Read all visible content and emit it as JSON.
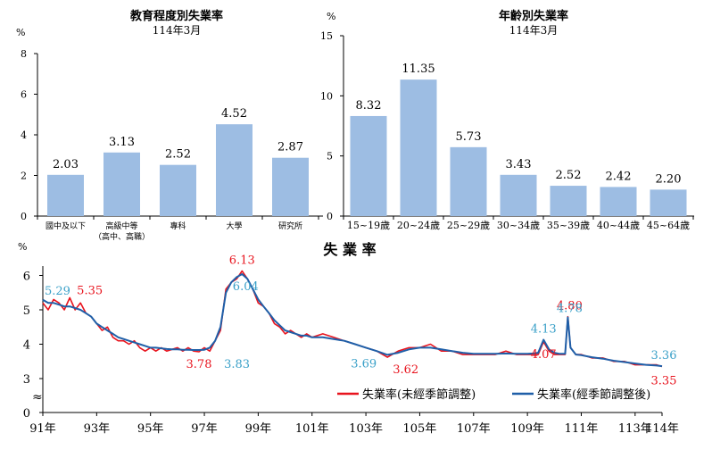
{
  "chart_data": [
    {
      "type": "bar",
      "title": "教育程度別失業率",
      "subtitle": "114年3月",
      "ylabel": "%",
      "ylim": [
        0,
        8
      ],
      "yticks": [
        0,
        2,
        4,
        6,
        8
      ],
      "categories": [
        [
          "國中及以下"
        ],
        [
          "高級中等",
          "（高中、高職）"
        ],
        [
          "專科"
        ],
        [
          "大學"
        ],
        [
          "研究所"
        ]
      ],
      "values": [
        2.03,
        3.13,
        2.52,
        4.52,
        2.87
      ],
      "value_labels": [
        "2.03",
        "3.13",
        "2.52",
        "4.52",
        "2.87"
      ],
      "color": "#9dbde3"
    },
    {
      "type": "bar",
      "title": "年齡別失業率",
      "subtitle": "114年3月",
      "ylabel": "%",
      "ylim": [
        0,
        15
      ],
      "yticks": [
        0,
        5,
        10,
        15
      ],
      "categories": [
        "15~19歲",
        "20~24歲",
        "25~29歲",
        "30~34歲",
        "35~39歲",
        "40~44歲",
        "45~64歲"
      ],
      "values": [
        8.32,
        11.35,
        5.73,
        3.43,
        2.52,
        2.42,
        2.2
      ],
      "value_labels": [
        "8.32",
        "11.35",
        "5.73",
        "3.43",
        "2.52",
        "2.42",
        "2.20"
      ],
      "color": "#9dbde3"
    },
    {
      "type": "line",
      "title": "失 業 率",
      "ylabel": "%",
      "ylim": [
        0,
        6.5
      ],
      "yticks": [
        0,
        3,
        4,
        5,
        6
      ],
      "axis_break": "≈",
      "xlim": [
        91,
        114
      ],
      "xticks": [
        "91年",
        "93年",
        "95年",
        "97年",
        "99年",
        "101年",
        "103年",
        "105年",
        "107年",
        "109年",
        "111年",
        "113年",
        "114年"
      ],
      "xtick_values": [
        91,
        93,
        95,
        97,
        99,
        101,
        103,
        105,
        107,
        109,
        111,
        113,
        114
      ],
      "series": [
        {
          "name": "失業率(未經季節調整)",
          "color": "#e8141e",
          "x": [
            91,
            91.2,
            91.4,
            91.6,
            91.8,
            92,
            92.2,
            92.4,
            92.6,
            92.8,
            93,
            93.2,
            93.4,
            93.6,
            93.8,
            94,
            94.2,
            94.4,
            94.6,
            94.8,
            95,
            95.2,
            95.4,
            95.6,
            95.8,
            96,
            96.2,
            96.4,
            96.6,
            96.8,
            97,
            97.2,
            97.4,
            97.6,
            97.8,
            98,
            98.2,
            98.4,
            98.6,
            98.8,
            99,
            99.2,
            99.4,
            99.6,
            99.8,
            100,
            100.2,
            100.4,
            100.6,
            100.8,
            101,
            101.4,
            101.8,
            102.2,
            102.6,
            103,
            103.4,
            103.8,
            104.2,
            104.6,
            105,
            105.4,
            105.8,
            106.2,
            106.6,
            107,
            107.4,
            107.8,
            108.2,
            108.6,
            109,
            109.2,
            109.4,
            109.6,
            109.8,
            110,
            110.2,
            110.4,
            110.5,
            110.6,
            110.8,
            111,
            111.4,
            111.8,
            112.2,
            112.6,
            113,
            113.4,
            113.8,
            114
          ],
          "values": [
            5.2,
            5.0,
            5.3,
            5.2,
            5.0,
            5.35,
            5.0,
            5.2,
            4.9,
            4.8,
            4.6,
            4.4,
            4.5,
            4.2,
            4.1,
            4.1,
            4.0,
            4.1,
            3.9,
            3.8,
            3.9,
            3.8,
            3.9,
            3.8,
            3.85,
            3.9,
            3.8,
            3.9,
            3.8,
            3.78,
            3.9,
            3.8,
            4.1,
            4.4,
            5.6,
            5.8,
            5.9,
            6.13,
            5.9,
            5.6,
            5.2,
            5.1,
            4.9,
            4.6,
            4.5,
            4.3,
            4.4,
            4.3,
            4.2,
            4.3,
            4.2,
            4.3,
            4.2,
            4.1,
            4.0,
            3.9,
            3.8,
            3.62,
            3.8,
            3.9,
            3.9,
            4.0,
            3.8,
            3.8,
            3.7,
            3.7,
            3.7,
            3.7,
            3.8,
            3.7,
            3.7,
            3.7,
            3.7,
            4.07,
            3.8,
            3.7,
            3.7,
            3.7,
            4.8,
            3.9,
            3.7,
            3.7,
            3.6,
            3.6,
            3.5,
            3.5,
            3.4,
            3.4,
            3.4,
            3.35
          ],
          "annotations": [
            {
              "x": 92,
              "y": 5.35,
              "label": "5.35"
            },
            {
              "x": 98.4,
              "y": 6.13,
              "label": "6.13"
            },
            {
              "x": 96.8,
              "y": 3.78,
              "label": "3.78"
            },
            {
              "x": 103.8,
              "y": 3.62,
              "label": "3.62"
            },
            {
              "x": 109.6,
              "y": 4.07,
              "label": "4.07"
            },
            {
              "x": 110.5,
              "y": 4.8,
              "label": "4.80"
            },
            {
              "x": 114,
              "y": 3.35,
              "label": "3.35"
            }
          ]
        },
        {
          "name": "失業率(經季節調整後)",
          "color": "#1f5fa8",
          "x": [
            91,
            91.2,
            91.4,
            91.6,
            91.8,
            92,
            92.2,
            92.4,
            92.6,
            92.8,
            93,
            93.2,
            93.4,
            93.6,
            93.8,
            94,
            94.2,
            94.4,
            94.6,
            94.8,
            95,
            95.2,
            95.4,
            95.6,
            95.8,
            96,
            96.2,
            96.4,
            96.6,
            96.8,
            97,
            97.2,
            97.4,
            97.6,
            97.8,
            98,
            98.2,
            98.4,
            98.6,
            98.8,
            99,
            99.2,
            99.4,
            99.6,
            99.8,
            100,
            100.2,
            100.4,
            100.6,
            100.8,
            101,
            101.4,
            101.8,
            102.2,
            102.6,
            103,
            103.4,
            103.8,
            104.2,
            104.6,
            105,
            105.4,
            105.8,
            106.2,
            106.6,
            107,
            107.4,
            107.8,
            108.2,
            108.6,
            109,
            109.2,
            109.4,
            109.6,
            109.8,
            110,
            110.2,
            110.4,
            110.5,
            110.6,
            110.8,
            111,
            111.4,
            111.8,
            112.2,
            112.6,
            113,
            113.4,
            113.8,
            114
          ],
          "values": [
            5.29,
            5.2,
            5.2,
            5.15,
            5.1,
            5.1,
            5.05,
            5.0,
            4.9,
            4.8,
            4.6,
            4.5,
            4.4,
            4.3,
            4.2,
            4.15,
            4.1,
            4.05,
            4.0,
            3.95,
            3.9,
            3.9,
            3.88,
            3.86,
            3.85,
            3.85,
            3.84,
            3.84,
            3.83,
            3.83,
            3.84,
            3.9,
            4.1,
            4.5,
            5.5,
            5.8,
            5.95,
            6.04,
            5.9,
            5.6,
            5.3,
            5.1,
            4.9,
            4.7,
            4.55,
            4.4,
            4.35,
            4.3,
            4.25,
            4.25,
            4.2,
            4.2,
            4.15,
            4.1,
            4.0,
            3.9,
            3.8,
            3.69,
            3.75,
            3.85,
            3.9,
            3.9,
            3.85,
            3.8,
            3.75,
            3.72,
            3.72,
            3.72,
            3.73,
            3.72,
            3.72,
            3.73,
            3.75,
            4.13,
            3.85,
            3.75,
            3.72,
            3.72,
            4.78,
            3.9,
            3.7,
            3.68,
            3.62,
            3.58,
            3.52,
            3.48,
            3.44,
            3.4,
            3.38,
            3.36
          ],
          "annotations": [
            {
              "x": 91,
              "y": 5.29,
              "label": "5.29"
            },
            {
              "x": 98.4,
              "y": 6.04,
              "label": "6.04"
            },
            {
              "x": 97.4,
              "y": 3.83,
              "label": "3.83"
            },
            {
              "x": 103.6,
              "y": 3.69,
              "label": "3.69"
            },
            {
              "x": 109.6,
              "y": 4.13,
              "label": "4.13"
            },
            {
              "x": 110.5,
              "y": 4.78,
              "label": "4.78"
            },
            {
              "x": 114,
              "y": 3.36,
              "label": "3.36"
            }
          ]
        }
      ],
      "legend": [
        "失業率(未經季節調整)",
        "失業率(經季節調整後)"
      ]
    }
  ]
}
